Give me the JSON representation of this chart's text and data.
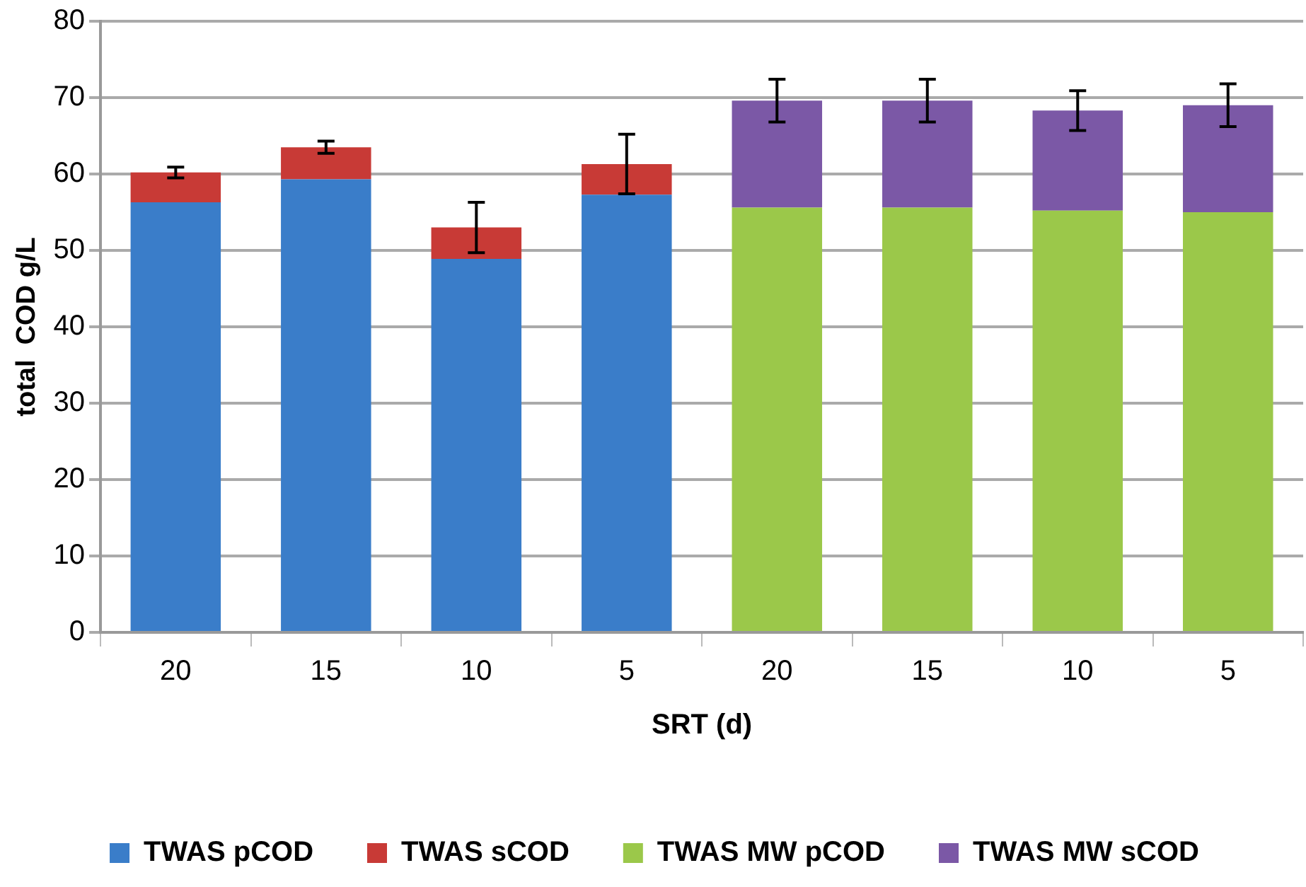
{
  "chart_data": {
    "type": "bar",
    "stacked": true,
    "xlabel": "SRT (d)",
    "ylabel": "total  COD g/L",
    "categories": [
      "20",
      "15",
      "10",
      "5",
      "20",
      "15",
      "10",
      "5"
    ],
    "series": [
      {
        "name": "TWAS pCOD",
        "color": "#3a7dc9",
        "values": [
          56.3,
          59.3,
          48.9,
          57.3,
          null,
          null,
          null,
          null
        ]
      },
      {
        "name": "TWAS sCOD",
        "color": "#c83a36",
        "values": [
          3.9,
          4.2,
          4.1,
          4.0,
          null,
          null,
          null,
          null
        ],
        "errors": [
          0.7,
          0.8,
          3.3,
          3.9,
          null,
          null,
          null,
          null
        ]
      },
      {
        "name": "TWAS MW pCOD",
        "color": "#9bc84a",
        "values": [
          null,
          null,
          null,
          null,
          55.6,
          55.6,
          55.2,
          55.0
        ]
      },
      {
        "name": "TWAS MW sCOD",
        "color": "#7b58a6",
        "values": [
          null,
          null,
          null,
          null,
          14.0,
          14.0,
          13.1,
          14.0
        ],
        "errors": [
          null,
          null,
          null,
          null,
          2.8,
          2.8,
          2.6,
          2.8
        ]
      }
    ],
    "ylim": [
      0,
      80
    ],
    "yticks": [
      0,
      10,
      20,
      30,
      40,
      50,
      60,
      70,
      80
    ],
    "grid": "y",
    "legend": "bottom"
  }
}
